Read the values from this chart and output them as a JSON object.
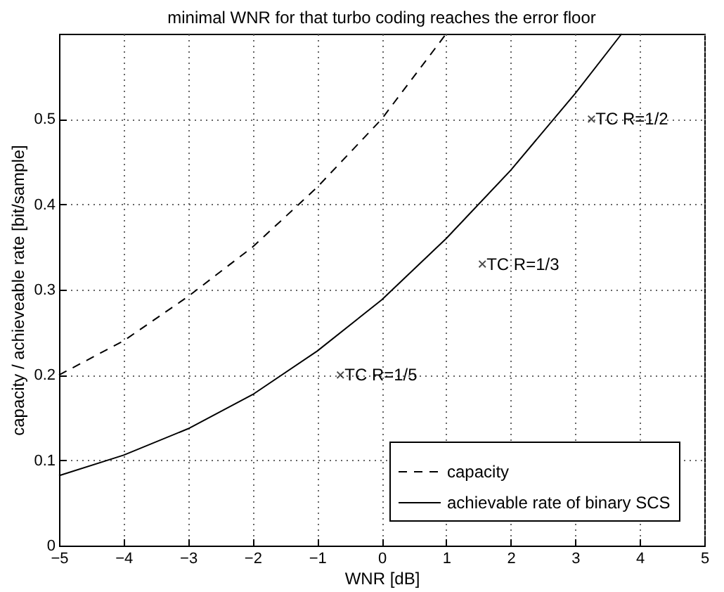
{
  "chart_data": {
    "type": "line",
    "title": "minimal WNR for that turbo coding reaches the error floor",
    "xlabel": "WNR [dB]",
    "ylabel": "capacity / achieveable rate [bit/sample]",
    "xlim": [
      -5,
      5
    ],
    "ylim": [
      0,
      0.6
    ],
    "xticks": [
      -5,
      -4,
      -3,
      -2,
      -1,
      0,
      1,
      2,
      3,
      4,
      5
    ],
    "yticks": [
      0,
      0.1,
      0.2,
      0.3,
      0.4,
      0.5
    ],
    "grid": true,
    "legend": "bottom right",
    "series": [
      {
        "name": "capacity",
        "color": "#000000",
        "line_style": "dashed",
        "x": [
          -5,
          -4,
          -3,
          -2,
          -1,
          0,
          1
        ],
        "values": [
          0.2,
          0.24,
          0.292,
          0.35,
          0.42,
          0.5,
          0.6
        ]
      },
      {
        "name": "achievable rate of binary SCS",
        "color": "#000000",
        "line_style": "solid",
        "x": [
          -5,
          -4,
          -3,
          -2,
          -1,
          0,
          1,
          2,
          3,
          3.72
        ],
        "values": [
          0.082,
          0.106,
          0.137,
          0.177,
          0.228,
          0.288,
          0.36,
          0.44,
          0.53,
          0.6
        ]
      },
      {
        "type": "scatter",
        "marker": "cross",
        "color": "#000000",
        "x": [
          -0.64,
          1.56,
          3.25
        ],
        "values": [
          0.2,
          0.33,
          0.5
        ],
        "value_labels": [
          "TC R=1/5",
          "TC R=1/3",
          "TC R=1/2"
        ]
      }
    ]
  }
}
